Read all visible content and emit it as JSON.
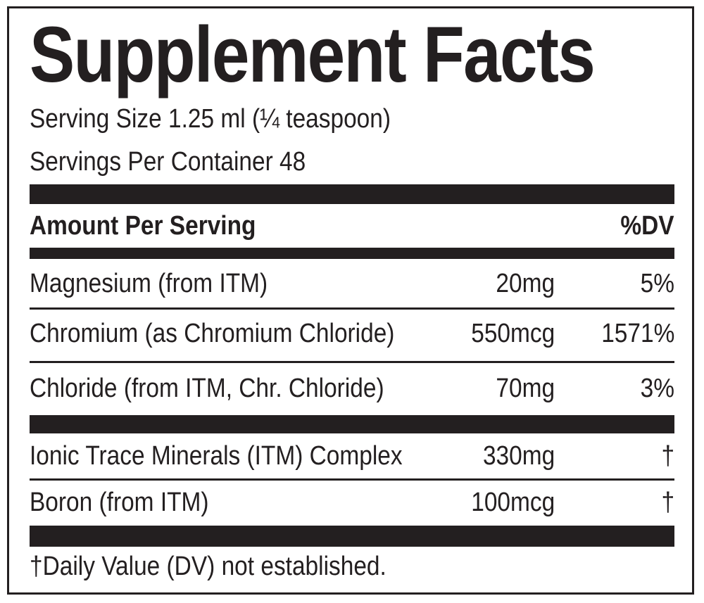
{
  "label": {
    "title": "Supplement Facts",
    "serving_size": "Serving Size 1.25 ml (¼ teaspoon)",
    "servings_per_container": "Servings Per Container 48",
    "header": {
      "amount_per_serving": "Amount Per Serving",
      "dv": "%DV"
    },
    "nutrients": [
      {
        "name": "Magnesium (from ITM)",
        "amount": "20mg",
        "dv": "5%"
      },
      {
        "name": "Chromium (as Chromium Chloride)",
        "amount": "550mcg",
        "dv": "1571%"
      },
      {
        "name": "Chloride (from ITM, Chr. Chloride)",
        "amount": "70mg",
        "dv": "3%"
      }
    ],
    "other_ingredients": [
      {
        "name": "Ionic Trace Minerals (ITM) Complex",
        "amount": "330mg",
        "dv": "†"
      },
      {
        "name": "Boron (from ITM)",
        "amount": "100mcg",
        "dv": "†"
      }
    ],
    "footnote": "†Daily Value (DV) not established.",
    "colors": {
      "ink": "#231f20",
      "background": "#ffffff"
    }
  }
}
